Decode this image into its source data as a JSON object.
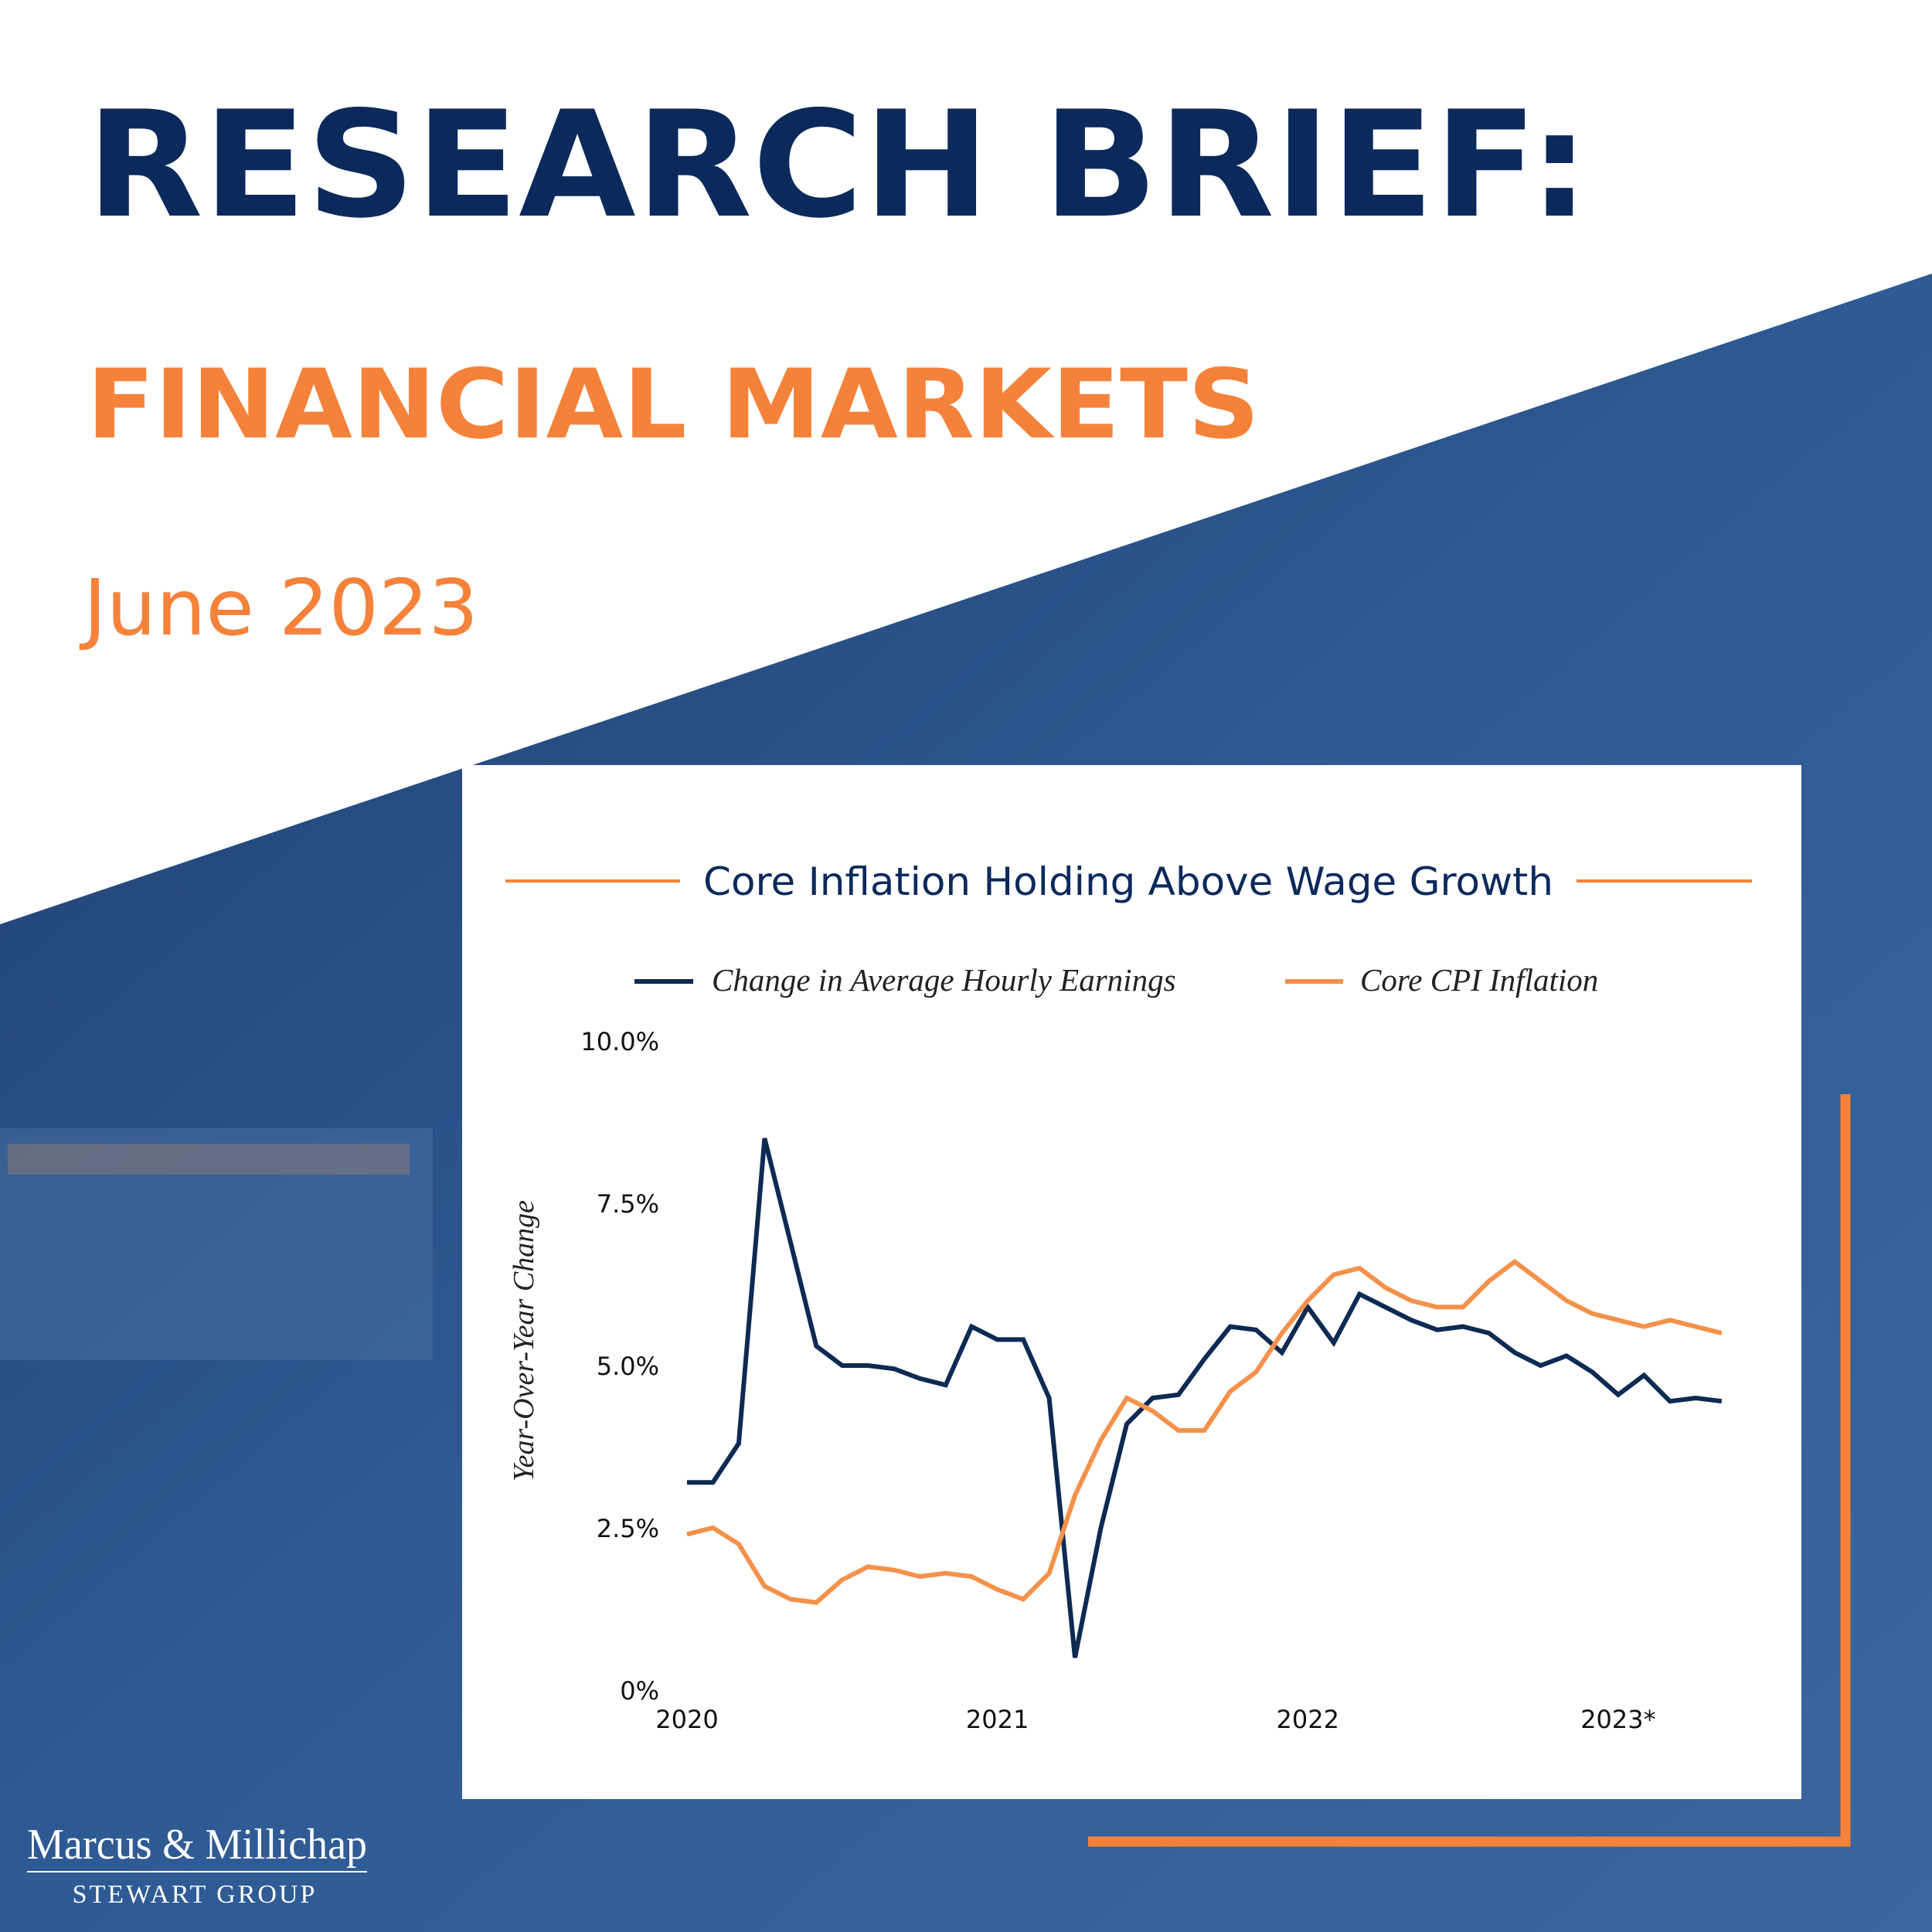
{
  "header": {
    "title": "RESEARCH BRIEF:",
    "subtitle": "FINANCIAL MARKETS",
    "date": "June 2023"
  },
  "logo": {
    "name": "Marcus & Millichap",
    "group": "STEWART GROUP"
  },
  "chart_data": {
    "type": "line",
    "title": "Core Inflation Holding Above Wage Growth",
    "y_label": "Year-Over-Year Change",
    "categories": [
      "2020",
      null,
      null,
      null,
      null,
      null,
      null,
      null,
      null,
      null,
      null,
      null,
      "2021",
      null,
      null,
      null,
      null,
      null,
      null,
      null,
      null,
      null,
      null,
      null,
      "2022",
      null,
      null,
      null,
      null,
      null,
      null,
      null,
      null,
      null,
      null,
      null,
      "2023*",
      null,
      null,
      null,
      null
    ],
    "series": [
      {
        "name": "Change in Average Hourly Earnings",
        "color": "#0d2a52",
        "values": [
          3.2,
          3.2,
          3.8,
          8.5,
          6.9,
          5.3,
          5.0,
          5.0,
          4.95,
          4.8,
          4.7,
          5.6,
          5.4,
          5.4,
          4.5,
          0.5,
          2.5,
          4.1,
          4.5,
          4.55,
          5.1,
          5.6,
          5.55,
          5.2,
          5.9,
          5.35,
          6.1,
          5.9,
          5.7,
          5.55,
          5.6,
          5.5,
          5.2,
          5.0,
          5.15,
          4.9,
          4.55,
          4.85,
          4.45,
          4.5,
          4.45
        ]
      },
      {
        "name": "Core CPI Inflation",
        "color": "#f4914a",
        "values": [
          2.4,
          2.5,
          2.25,
          1.6,
          1.4,
          1.35,
          1.7,
          1.9,
          1.85,
          1.75,
          1.8,
          1.75,
          1.55,
          1.4,
          1.8,
          3.0,
          3.85,
          4.5,
          4.3,
          4.0,
          4.0,
          4.6,
          4.9,
          5.5,
          6.0,
          6.4,
          6.5,
          6.2,
          6.0,
          5.9,
          5.9,
          6.3,
          6.6,
          6.3,
          6.0,
          5.8,
          5.7,
          5.6,
          5.7,
          5.6,
          5.5
        ]
      }
    ],
    "ylim": [
      0,
      10
    ],
    "yticks": [
      {
        "value": 0,
        "label": "0%"
      },
      {
        "value": 2.5,
        "label": "2.5%"
      },
      {
        "value": 5,
        "label": "5.0%"
      },
      {
        "value": 7.5,
        "label": "7.5%"
      },
      {
        "value": 10,
        "label": "10.0%"
      }
    ],
    "grid": false
  }
}
